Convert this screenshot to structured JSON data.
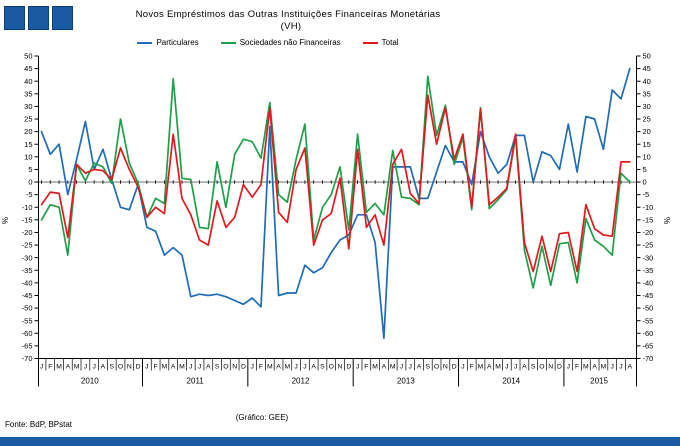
{
  "theme": {
    "navy": "#1A5AA3",
    "navy_border": "#0E3D75",
    "axis_color": "#000000",
    "zero_line_color": "#808080",
    "background": "#ffffff"
  },
  "header": {
    "title": "Novos Empréstimos das Outras Instituições Financeiras Monetárias",
    "subtitle": "(VH)"
  },
  "legend": [
    {
      "label": "Particulares",
      "color": "#1E6CB5"
    },
    {
      "label": "Sociedades não Financeiras",
      "color": "#1EA048"
    },
    {
      "label": "Total",
      "color": "#E01A1C"
    }
  ],
  "axes": {
    "y_left_unit": "%",
    "y_right_unit": "%",
    "y_ticks": [
      50,
      45,
      40,
      35,
      30,
      25,
      20,
      15,
      10,
      5,
      0,
      -5,
      -10,
      -15,
      -20,
      -25,
      -30,
      -35,
      -40,
      -45,
      -50,
      -55,
      -60,
      -65,
      -70
    ]
  },
  "footer": {
    "source": "Fonte: BdP, BPstat",
    "credit": "(Gráfico: GEE)"
  },
  "chart_data": {
    "type": "line",
    "title": "Novos Empréstimos das Outras Instituições Financeiras Monetárias",
    "subtitle": "(VH)",
    "ylabel": "%",
    "ylim": [
      -70,
      50
    ],
    "y_step": 5,
    "grid": false,
    "legend_position": "top",
    "years": [
      {
        "label": "2010",
        "months": [
          "J",
          "F",
          "M",
          "A",
          "M",
          "J",
          "J",
          "A",
          "S",
          "O",
          "N",
          "D"
        ]
      },
      {
        "label": "2011",
        "months": [
          "J",
          "F",
          "M",
          "A",
          "M",
          "J",
          "J",
          "A",
          "S",
          "O",
          "N",
          "D"
        ]
      },
      {
        "label": "2012",
        "months": [
          "J",
          "F",
          "M",
          "A",
          "M",
          "J",
          "J",
          "A",
          "S",
          "O",
          "N",
          "D"
        ]
      },
      {
        "label": "2013",
        "months": [
          "J",
          "F",
          "M",
          "A",
          "M",
          "J",
          "J",
          "A",
          "S",
          "O",
          "N",
          "D"
        ]
      },
      {
        "label": "2014",
        "months": [
          "J",
          "F",
          "M",
          "A",
          "M",
          "J",
          "J",
          "A",
          "S",
          "O",
          "N",
          "D"
        ]
      },
      {
        "label": "2015",
        "months": [
          "J",
          "F",
          "M",
          "A",
          "M",
          "J",
          "J",
          "A"
        ]
      }
    ],
    "series": [
      {
        "name": "Particulares",
        "color": "#1E6CB5",
        "values": [
          20,
          11,
          15,
          -5,
          9,
          24,
          5,
          13,
          1,
          -10,
          -11,
          -1,
          -18,
          -19.5,
          -29,
          -26,
          -29,
          -45.5,
          -44.5,
          -45,
          -44.5,
          -45.5,
          -47,
          -48.5,
          -46,
          -49.5,
          22,
          -45,
          -44,
          -44,
          -33,
          -36,
          -34,
          -28,
          -23,
          -21,
          -13,
          -13,
          -24,
          -62,
          6,
          6,
          6,
          -6.5,
          -6.5,
          4,
          14.5,
          8,
          8,
          -1,
          20,
          10,
          3.5,
          7,
          18.5,
          18.5,
          0,
          12,
          10.5,
          5,
          23,
          4,
          26,
          25,
          13,
          36.5,
          33,
          45
        ]
      },
      {
        "name": "Sociedades não Financeiras",
        "color": "#1EA048",
        "values": [
          -15,
          -9,
          -10,
          -29,
          7,
          0.5,
          7.5,
          6,
          -0.5,
          25,
          7.5,
          -0.5,
          -14,
          -6.5,
          -8.5,
          41,
          1.5,
          1,
          -18,
          -18.5,
          8,
          -10,
          11,
          17,
          16,
          9.5,
          31.5,
          -5,
          -8,
          9,
          23,
          -23,
          -10,
          -5,
          6,
          -19,
          19,
          -12,
          -8.5,
          -13,
          12.5,
          -6,
          -6.5,
          -9,
          42,
          18.5,
          30.5,
          7,
          17.5,
          -11,
          29.5,
          -10.5,
          -7,
          -3,
          18,
          -27,
          -42,
          -25.5,
          -41,
          -24.5,
          -24,
          -40,
          -14.5,
          -23,
          -25.5,
          -29,
          3.5,
          0
        ]
      },
      {
        "name": "Total",
        "color": "#E01A1C",
        "values": [
          -9,
          -4,
          -4.5,
          -22,
          7,
          3.5,
          5,
          4.5,
          1,
          13.5,
          5,
          -2,
          -14,
          -10,
          -12.5,
          19,
          -6.5,
          -13,
          -23,
          -25,
          -7.5,
          -18,
          -14,
          -1,
          -6,
          -1,
          29.5,
          -12,
          -16,
          5,
          13.5,
          -25,
          -15,
          -12.5,
          1.5,
          -26.5,
          13,
          -18,
          -13,
          -25,
          7,
          13,
          -4.5,
          -8.5,
          34.5,
          15,
          29.5,
          9,
          19,
          -10,
          29,
          -9,
          -6,
          -2.5,
          19,
          -24,
          -35.5,
          -21.5,
          -35.5,
          -20.5,
          -20,
          -35.5,
          -9,
          -18.5,
          -21,
          -21.5,
          8,
          8
        ]
      }
    ]
  }
}
